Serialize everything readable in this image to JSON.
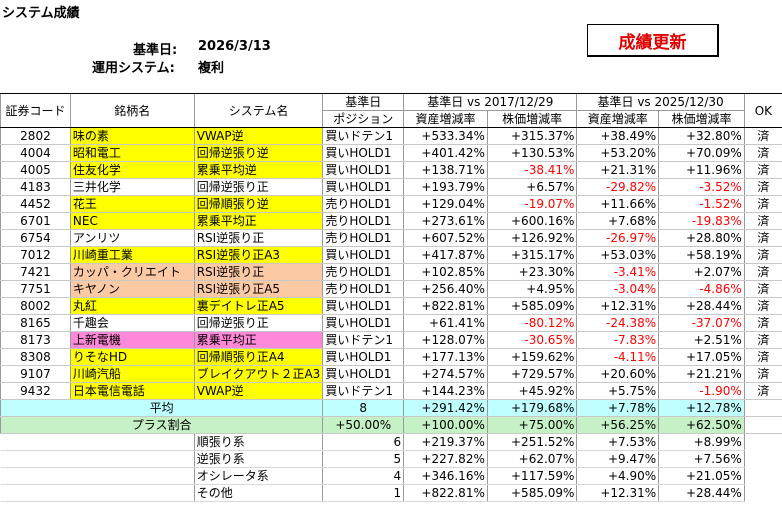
{
  "title": "システム成績",
  "base_date_label": "基準日:",
  "base_date": "2026/3/13",
  "system_label": "運用システム:",
  "system_value": "複利",
  "update_button": "成績更新",
  "headers": {
    "code": "証券コード",
    "name": "銘柄名",
    "system": "システム名",
    "base_top": "基準日",
    "base_bottom": "ポジション",
    "period1": "基準日 vs 2017/12/29",
    "period2": "基準日 vs 2025/12/30",
    "asset": "資産増減率",
    "price": "株価増減率",
    "ok": "OK"
  },
  "rows": [
    {
      "code": "2802",
      "name": "味の素",
      "system": "VWAP逆",
      "position": "買いドテン1",
      "a1": "+533.34%",
      "p1": "+315.37%",
      "a2": "+38.49%",
      "p2": "+32.80%",
      "ok": "済",
      "color": "y"
    },
    {
      "code": "4004",
      "name": "昭和電工",
      "system": "回帰逆張り逆",
      "position": "買いHOLD1",
      "a1": "+401.42%",
      "p1": "+130.53%",
      "a2": "+53.20%",
      "p2": "+70.09%",
      "ok": "済",
      "color": "y"
    },
    {
      "code": "4005",
      "name": "住友化学",
      "system": "累乗平均逆",
      "position": "買いHOLD1",
      "a1": "+138.71%",
      "p1": "-38.41%",
      "a2": "+21.31%",
      "p2": "+11.96%",
      "ok": "済",
      "color": "y"
    },
    {
      "code": "4183",
      "name": "三井化学",
      "system": "回帰逆張り正",
      "position": "買いHOLD1",
      "a1": "+193.79%",
      "p1": "+6.57%",
      "a2": "-29.82%",
      "p2": "-3.52%",
      "ok": "済",
      "color": "w"
    },
    {
      "code": "4452",
      "name": "花王",
      "system": "回帰順張り逆",
      "position": "売りHOLD1",
      "a1": "+129.04%",
      "p1": "-19.07%",
      "a2": "+11.66%",
      "p2": "-1.52%",
      "ok": "済",
      "color": "y"
    },
    {
      "code": "6701",
      "name": "NEC",
      "system": "累乗平均正",
      "position": "売りHOLD1",
      "a1": "+273.61%",
      "p1": "+600.16%",
      "a2": "+7.68%",
      "p2": "-19.83%",
      "ok": "済",
      "color": "y"
    },
    {
      "code": "6754",
      "name": "アンリツ",
      "system": "RSI逆張り正",
      "position": "売りHOLD1",
      "a1": "+607.52%",
      "p1": "+126.92%",
      "a2": "-26.97%",
      "p2": "+28.80%",
      "ok": "済",
      "color": "w"
    },
    {
      "code": "7012",
      "name": "川崎重工業",
      "system": "RSI逆張り正A3",
      "position": "買いHOLD1",
      "a1": "+417.87%",
      "p1": "+315.17%",
      "a2": "+53.03%",
      "p2": "+58.19%",
      "ok": "済",
      "color": "y"
    },
    {
      "code": "7421",
      "name": "カッパ・クリエイト",
      "system": "RSI逆張り正",
      "position": "売りHOLD1",
      "a1": "+102.85%",
      "p1": "+23.30%",
      "a2": "-3.41%",
      "p2": "+2.07%",
      "ok": "済",
      "color": "o"
    },
    {
      "code": "7751",
      "name": "キヤノン",
      "system": "RSI逆張り正A5",
      "position": "売りHOLD1",
      "a1": "+256.40%",
      "p1": "+4.95%",
      "a2": "-3.04%",
      "p2": "-4.86%",
      "ok": "済",
      "color": "o"
    },
    {
      "code": "8002",
      "name": "丸紅",
      "system": "裏デイトレ正A5",
      "position": "買いHOLD1",
      "a1": "+822.81%",
      "p1": "+585.09%",
      "a2": "+12.31%",
      "p2": "+28.44%",
      "ok": "済",
      "color": "y"
    },
    {
      "code": "8165",
      "name": "千趣会",
      "system": "回帰逆張り正",
      "position": "買いHOLD1",
      "a1": "+61.41%",
      "p1": "-80.12%",
      "a2": "-24.38%",
      "p2": "-37.07%",
      "ok": "済",
      "color": "w"
    },
    {
      "code": "8173",
      "name": "上新電機",
      "system": "累乗平均正",
      "position": "買いドテン1",
      "a1": "+128.07%",
      "p1": "-30.65%",
      "a2": "-7.83%",
      "p2": "+2.51%",
      "ok": "済",
      "color": "p"
    },
    {
      "code": "8308",
      "name": "りそなHD",
      "system": "回帰順張り正A4",
      "position": "買いHOLD1",
      "a1": "+177.13%",
      "p1": "+159.62%",
      "a2": "-4.11%",
      "p2": "+17.05%",
      "ok": "済",
      "color": "y"
    },
    {
      "code": "9107",
      "name": "川崎汽船",
      "system": "ブレイクアウト２正A3",
      "position": "買いHOLD1",
      "a1": "+274.57%",
      "p1": "+729.57%",
      "a2": "+20.60%",
      "p2": "+21.21%",
      "ok": "済",
      "color": "y"
    },
    {
      "code": "9432",
      "name": "日本電信電話",
      "system": "VWAP逆",
      "position": "買いドテン1",
      "a1": "+144.23%",
      "p1": "+45.92%",
      "a2": "+5.75%",
      "p2": "-1.90%",
      "ok": "済",
      "color": "y"
    }
  ],
  "average": {
    "label": "平均",
    "count": "8",
    "a1": "+291.42%",
    "p1": "+179.68%",
    "a2": "+7.78%",
    "p2": "+12.78%"
  },
  "plus": {
    "label": "プラス割合",
    "ratio": "+50.00%",
    "a1": "+100.00%",
    "p1": "+75.00%",
    "a2": "+56.25%",
    "p2": "+62.50%"
  },
  "categories": [
    {
      "label": "順張り系",
      "count": "6",
      "a1": "+219.37%",
      "p1": "+251.52%",
      "a2": "+7.53%",
      "p2": "+8.99%"
    },
    {
      "label": "逆張り系",
      "count": "5",
      "a1": "+227.82%",
      "p1": "+62.07%",
      "a2": "+9.47%",
      "p2": "+7.56%"
    },
    {
      "label": "オシレータ系",
      "count": "4",
      "a1": "+346.16%",
      "p1": "+117.59%",
      "a2": "+4.90%",
      "p2": "+21.05%"
    },
    {
      "label": "その他",
      "count": "1",
      "a1": "+822.81%",
      "p1": "+585.09%",
      "a2": "+12.31%",
      "p2": "+28.44%"
    }
  ]
}
